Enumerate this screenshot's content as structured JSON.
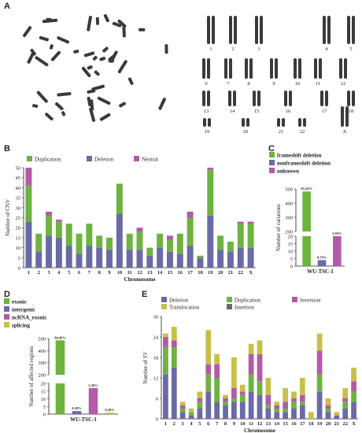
{
  "panel_labels": {
    "a": "A",
    "b": "B",
    "c": "C",
    "d": "D",
    "e": "E"
  },
  "colors": {
    "green": "#6db33f",
    "blue": "#6a6aa8",
    "pink": "#b35aa8",
    "olive": "#c6c04a",
    "chromosome": "#3a3a3a"
  },
  "karyotype": {
    "labels": [
      "1",
      "2",
      "3",
      "4",
      "5",
      "6",
      "7",
      "8",
      "9",
      "10",
      "11",
      "12",
      "13",
      "14",
      "15",
      "16",
      "17",
      "18",
      "19",
      "20",
      "21",
      "22",
      "X"
    ]
  },
  "chart_data": [
    {
      "id": "B",
      "type": "bar",
      "stacked": true,
      "ylabel": "Number of CNV",
      "xlabel": "Chromosome",
      "ylim": [
        0,
        50
      ],
      "yticks": [
        0,
        5,
        10,
        15,
        20,
        25,
        30,
        35,
        40,
        45,
        50
      ],
      "legend_position": "top-left",
      "categories": [
        "1",
        "2",
        "3",
        "4",
        "5",
        "6",
        "7",
        "8",
        "9",
        "10",
        "11",
        "12",
        "13",
        "14",
        "15",
        "16",
        "17",
        "18",
        "19",
        "20",
        "21",
        "22",
        "X"
      ],
      "series": [
        {
          "name": "Deletion",
          "color": "#6a6aa8",
          "values": [
            23,
            8,
            16,
            15,
            11,
            7,
            11,
            10,
            9,
            27,
            9,
            9,
            6,
            10,
            8,
            7,
            11,
            5,
            26,
            9,
            8,
            10,
            10
          ]
        },
        {
          "name": "Duplication",
          "color": "#6db33f",
          "values": [
            18,
            9,
            10,
            8,
            11,
            10,
            11,
            6,
            6,
            15,
            8,
            9,
            4,
            7,
            6,
            10,
            14,
            1,
            23,
            7,
            5,
            12,
            12
          ]
        },
        {
          "name": "Neutral",
          "color": "#b35aa8",
          "values": [
            9,
            0,
            2,
            1,
            0,
            0,
            0,
            0,
            0,
            0,
            0,
            2,
            0,
            0,
            2,
            0,
            3,
            0,
            1,
            0,
            0,
            1,
            1
          ]
        }
      ]
    },
    {
      "id": "C",
      "type": "bar",
      "ylabel": "Number of variations",
      "categories": [
        "WU-TSC-1"
      ],
      "ylim_lower": [
        0,
        20
      ],
      "ylim_upper": [
        200,
        500
      ],
      "yticks_lower": [
        0,
        5,
        10,
        15,
        20
      ],
      "yticks_upper": [
        200,
        300,
        400,
        500
      ],
      "series": [
        {
          "name": "frameshift deletion",
          "color": "#6db33f",
          "values": [
            482
          ],
          "label": "95.26%"
        },
        {
          "name": "nonframeshift deletion",
          "color": "#6a6aa8",
          "values": [
            4
          ],
          "label": "0.79%"
        },
        {
          "name": "unknown",
          "color": "#b35aa8",
          "values": [
            20
          ],
          "label": "3.95%"
        }
      ]
    },
    {
      "id": "D",
      "type": "bar",
      "ylabel": "Number of affected regions",
      "categories": [
        "WU-TSC-1"
      ],
      "ylim_lower": [
        0,
        20
      ],
      "ylim_upper": [
        200,
        500
      ],
      "yticks_lower": [
        0,
        5,
        10,
        15,
        20
      ],
      "yticks_upper": [
        200,
        300,
        400,
        500
      ],
      "series": [
        {
          "name": "exonic",
          "color": "#6db33f",
          "values": [
            485
          ],
          "label": "94.40%"
        },
        {
          "name": "intergenic",
          "color": "#6a6aa8",
          "values": [
            2
          ],
          "label": "0.39%"
        },
        {
          "name": "ncRNA_exonic",
          "color": "#b35aa8",
          "values": [
            17
          ],
          "label": "3.36%"
        },
        {
          "name": "splicing",
          "color": "#c6c04a",
          "values": [
            1
          ],
          "label": "0.20%"
        }
      ]
    },
    {
      "id": "E",
      "type": "bar",
      "stacked": true,
      "ylabel": "Number of SV",
      "xlabel": "Chromosome",
      "ylim": [
        0,
        30
      ],
      "yticks": [
        0,
        6,
        12,
        18,
        24,
        30
      ],
      "legend_position": "top",
      "categories": [
        "1",
        "2",
        "3",
        "4",
        "5",
        "6",
        "7",
        "8",
        "9",
        "10",
        "11",
        "12",
        "13",
        "14",
        "15",
        "16",
        "17",
        "18",
        "19",
        "20",
        "21",
        "22",
        "X"
      ],
      "series": [
        {
          "name": "Deletion",
          "color": "#6a6aa8",
          "values": [
            13,
            15,
            2,
            1,
            3,
            8,
            5,
            4,
            5,
            5,
            8,
            7,
            3,
            2,
            2,
            3,
            4,
            0,
            8,
            2,
            1,
            3,
            5
          ]
        },
        {
          "name": "Duplication",
          "color": "#6db33f",
          "values": [
            8,
            6,
            1,
            1,
            2,
            5,
            7,
            1,
            1,
            2,
            5,
            4,
            1,
            1,
            1,
            2,
            1,
            0,
            5,
            1,
            0,
            2,
            3
          ]
        },
        {
          "name": "Inversion",
          "color": "#b35aa8",
          "values": [
            3,
            2,
            1,
            0,
            1,
            3,
            4,
            1,
            3,
            1,
            6,
            8,
            3,
            1,
            2,
            1,
            2,
            0,
            7,
            1,
            0,
            1,
            3
          ]
        },
        {
          "name": "Translocation",
          "color": "#c6c04a",
          "values": [
            1,
            4,
            1,
            1,
            2,
            10,
            3,
            1,
            9,
            2,
            3,
            4,
            5,
            1,
            4,
            2,
            5,
            2,
            5,
            2,
            1,
            3,
            4
          ]
        },
        {
          "name": "Insertion",
          "color": "#6a6a6a",
          "values": [
            0,
            0,
            0,
            0,
            0,
            0,
            0,
            0,
            0,
            0,
            0,
            0,
            0,
            0,
            0,
            0,
            0,
            0,
            0,
            0,
            0,
            0,
            0
          ]
        }
      ]
    }
  ]
}
